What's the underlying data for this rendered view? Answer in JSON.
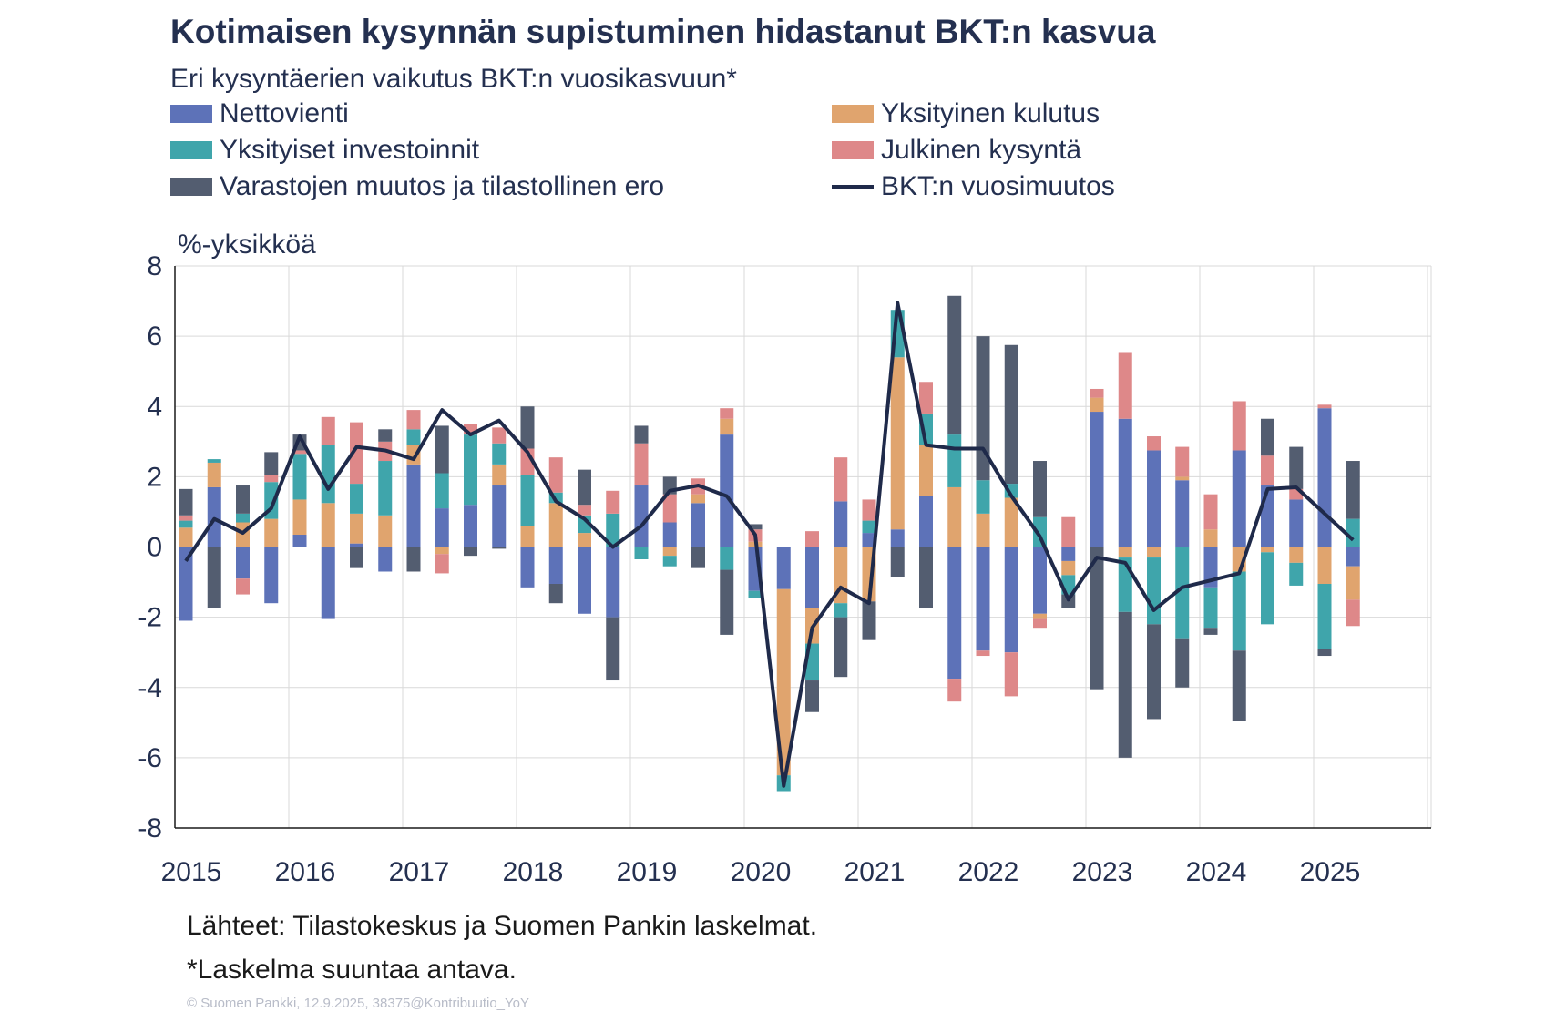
{
  "title": "Kotimaisen kysynnän supistuminen hidastanut BKT:n kasvua",
  "subtitle": "Eri kysyntäerien vaikutus BKT:n vuosikasvuun*",
  "unit_label": "%-yksikköä",
  "source_line": "Lähteet: Tilastokeskus ja Suomen Pankin laskelmat.",
  "note_line": "*Laskelma suuntaa antava.",
  "copyright": "© Suomen Pankki, 12.9.2025, 38375@Kontribuutio_YoY",
  "legend": [
    {
      "label": "Nettovienti",
      "color": "#5d72b8",
      "kind": "bar"
    },
    {
      "label": "Yksityinen kulutus",
      "color": "#e0a46e",
      "kind": "bar"
    },
    {
      "label": "Yksityiset investoinnit",
      "color": "#3fa5ab",
      "kind": "bar"
    },
    {
      "label": "Julkinen kysyntä",
      "color": "#de8889",
      "kind": "bar"
    },
    {
      "label": "Varastojen muutos ja tilastollinen ero",
      "color": "#535d70",
      "kind": "bar"
    },
    {
      "label": "BKT:n vuosimuutos",
      "color": "#1f2a4a",
      "kind": "line"
    }
  ],
  "chart_data": {
    "type": "bar",
    "stacked": true,
    "title": "Kotimaisen kysynnän supistuminen hidastanut BKT:n kasvua",
    "ylabel": "%-yksikköä",
    "ylim": [
      -8,
      8
    ],
    "yticks": [
      8,
      6,
      4,
      2,
      0,
      -2,
      -4,
      -6,
      -8
    ],
    "xtick_labels": [
      "2015",
      "2016",
      "2017",
      "2018",
      "2019",
      "2020",
      "2021",
      "2022",
      "2023",
      "2024",
      "2025"
    ],
    "categories": [
      "2015Q1",
      "2015Q2",
      "2015Q3",
      "2015Q4",
      "2016Q1",
      "2016Q2",
      "2016Q3",
      "2016Q4",
      "2017Q1",
      "2017Q2",
      "2017Q3",
      "2017Q4",
      "2018Q1",
      "2018Q2",
      "2018Q3",
      "2018Q4",
      "2019Q1",
      "2019Q2",
      "2019Q3",
      "2019Q4",
      "2020Q1",
      "2020Q2",
      "2020Q3",
      "2020Q4",
      "2021Q1",
      "2021Q2",
      "2021Q3",
      "2021Q4",
      "2022Q1",
      "2022Q2",
      "2022Q3",
      "2022Q4",
      "2023Q1",
      "2023Q2",
      "2023Q3",
      "2023Q4",
      "2024Q1",
      "2024Q2",
      "2024Q3",
      "2024Q4",
      "2025Q1",
      "2025Q2"
    ],
    "series": [
      {
        "name": "Nettovienti",
        "values": [
          -2.1,
          1.7,
          -0.9,
          -1.6,
          0.35,
          -2.05,
          0.1,
          -0.7,
          2.35,
          1.1,
          1.2,
          1.75,
          -1.15,
          -1.05,
          -1.9,
          -2.0,
          1.75,
          0.7,
          1.25,
          3.2,
          -1.25,
          -1.2,
          -1.75,
          1.3,
          0.4,
          0.5,
          1.45,
          -3.75,
          -2.95,
          -3.0,
          -1.9,
          -0.4,
          3.85,
          3.65,
          2.75,
          1.9,
          -1.15,
          2.75,
          1.75,
          1.35,
          3.95,
          -0.55
        ]
      },
      {
        "name": "Yksityinen kulutus",
        "values": [
          0.55,
          0.7,
          0.7,
          0.8,
          1.0,
          1.25,
          0.85,
          0.9,
          0.55,
          -0.2,
          0.0,
          0.6,
          0.6,
          1.25,
          0.4,
          0.0,
          0.0,
          -0.25,
          0.25,
          0.45,
          0.15,
          -5.3,
          -1.0,
          -1.6,
          -1.55,
          4.9,
          1.45,
          1.7,
          0.95,
          1.4,
          -0.15,
          -0.4,
          0.4,
          -0.3,
          -0.3,
          0.1,
          0.5,
          -0.7,
          -0.15,
          -0.45,
          -1.05,
          -0.95
        ]
      },
      {
        "name": "Yksityiset investoinnit",
        "values": [
          0.2,
          0.1,
          0.25,
          1.05,
          1.3,
          1.65,
          0.85,
          1.55,
          0.45,
          1.0,
          2.0,
          0.6,
          1.45,
          0.3,
          0.5,
          0.95,
          -0.35,
          -0.3,
          0.0,
          -0.65,
          -0.2,
          -0.45,
          -1.05,
          -0.4,
          0.35,
          1.35,
          0.9,
          1.5,
          0.95,
          0.4,
          0.85,
          -0.55,
          0.0,
          -1.55,
          -1.9,
          -2.6,
          -1.15,
          -2.25,
          -2.05,
          -0.65,
          -1.85,
          0.8
        ]
      },
      {
        "name": "Julkinen kysyntä",
        "values": [
          0.15,
          0.0,
          -0.45,
          0.2,
          0.1,
          0.8,
          1.75,
          0.55,
          0.55,
          -0.55,
          0.3,
          0.45,
          0.75,
          1.0,
          0.3,
          0.65,
          1.2,
          0.8,
          0.45,
          0.3,
          0.35,
          0.0,
          0.45,
          1.25,
          0.6,
          0.0,
          0.9,
          -0.65,
          -0.15,
          -1.25,
          -0.25,
          0.85,
          0.25,
          1.9,
          0.4,
          0.85,
          1.0,
          1.4,
          0.85,
          0.3,
          0.1,
          -0.75
        ]
      },
      {
        "name": "Varastojen muutos ja tilastollinen ero",
        "values": [
          0.75,
          -1.75,
          0.8,
          0.65,
          0.45,
          0.0,
          -0.6,
          0.35,
          -0.7,
          1.35,
          -0.25,
          -0.05,
          1.2,
          -0.55,
          1.0,
          -1.8,
          0.5,
          0.5,
          -0.6,
          -1.85,
          0.15,
          0.0,
          -0.9,
          -1.7,
          -1.1,
          -0.85,
          -1.75,
          3.95,
          4.1,
          3.95,
          1.6,
          -0.4,
          -4.05,
          -4.15,
          -2.7,
          -1.4,
          -0.2,
          -2.0,
          1.05,
          1.2,
          -0.2,
          1.65
        ]
      },
      {
        "name": "BKT:n vuosimuutos",
        "type": "line",
        "values": [
          -0.4,
          0.8,
          0.4,
          1.1,
          3.15,
          1.65,
          2.85,
          2.75,
          2.5,
          3.9,
          3.2,
          3.6,
          2.7,
          1.3,
          0.8,
          0.0,
          0.6,
          1.6,
          1.75,
          1.45,
          0.35,
          -6.8,
          -2.3,
          -1.15,
          -1.6,
          6.95,
          2.9,
          2.8,
          2.8,
          1.45,
          0.3,
          -1.5,
          -0.3,
          -0.45,
          -1.8,
          -1.15,
          -0.95,
          -0.75,
          1.65,
          1.7,
          0.95,
          0.2
        ]
      }
    ]
  }
}
